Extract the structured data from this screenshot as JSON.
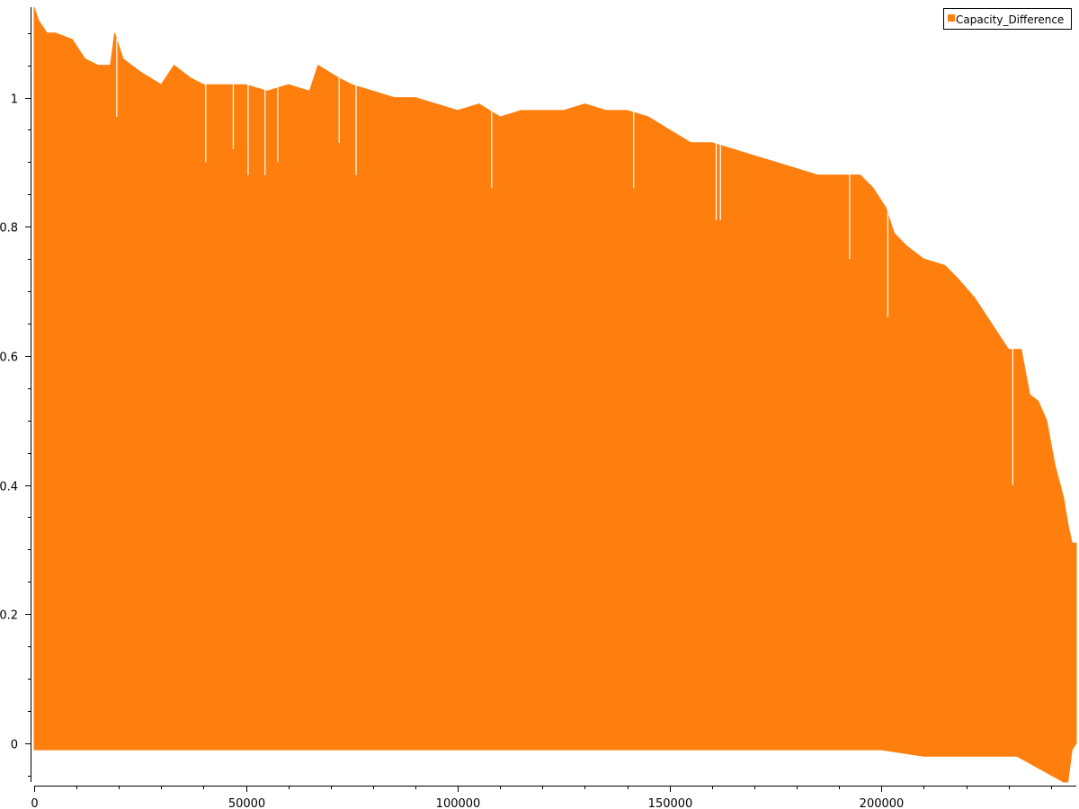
{
  "chart_data": {
    "type": "area",
    "title": "",
    "xlabel": "",
    "ylabel": "",
    "xlim": [
      0,
      246000
    ],
    "ylim": [
      -0.06,
      1.14
    ],
    "grid": false,
    "legend_position": "top-right",
    "x_ticks": [
      0,
      50000,
      100000,
      150000,
      200000
    ],
    "x_tick_labels": [
      "0",
      "50000",
      "100000",
      "150000",
      "200000"
    ],
    "y_ticks": [
      0,
      0.2,
      0.4,
      0.6,
      0.8,
      1
    ],
    "y_tick_labels": [
      "0",
      "0.2",
      "0.4",
      "0.6",
      "0.8",
      "1"
    ],
    "series": [
      {
        "name": "Capacity_Difference",
        "color": "#ff7f0e",
        "upper_envelope": {
          "x": [
            0,
            1000,
            3000,
            5000,
            9000,
            12000,
            15000,
            18000,
            19000,
            21000,
            25000,
            30000,
            33000,
            37000,
            40000,
            45000,
            50000,
            55000,
            60000,
            65000,
            67000,
            72000,
            75000,
            80000,
            85000,
            90000,
            95000,
            100000,
            105000,
            110000,
            115000,
            120000,
            125000,
            130000,
            135000,
            140000,
            145000,
            150000,
            155000,
            160000,
            165000,
            170000,
            175000,
            180000,
            185000,
            190000,
            195000,
            198000,
            201000,
            203000,
            206000,
            210000,
            215000,
            218000,
            222000,
            226000,
            230000,
            233000,
            235000,
            237000,
            239000,
            241000,
            243000,
            244000,
            245000,
            246000
          ],
          "y": [
            1.14,
            1.12,
            1.1,
            1.1,
            1.09,
            1.06,
            1.05,
            1.05,
            1.1,
            1.06,
            1.04,
            1.02,
            1.05,
            1.03,
            1.02,
            1.02,
            1.02,
            1.01,
            1.02,
            1.01,
            1.05,
            1.03,
            1.02,
            1.01,
            1.0,
            1.0,
            0.99,
            0.98,
            0.99,
            0.97,
            0.98,
            0.98,
            0.98,
            0.99,
            0.98,
            0.98,
            0.97,
            0.95,
            0.93,
            0.93,
            0.92,
            0.91,
            0.9,
            0.89,
            0.88,
            0.88,
            0.88,
            0.86,
            0.83,
            0.79,
            0.77,
            0.75,
            0.74,
            0.72,
            0.69,
            0.65,
            0.61,
            0.61,
            0.54,
            0.53,
            0.5,
            0.43,
            0.38,
            0.34,
            0.31,
            0.31
          ]
        },
        "lower_envelope": {
          "x": [
            0,
            50000,
            100000,
            150000,
            200000,
            210000,
            220000,
            232000,
            243000,
            244000,
            245000,
            246000
          ],
          "y": [
            -0.01,
            -0.01,
            -0.01,
            -0.01,
            -0.01,
            -0.02,
            -0.02,
            -0.02,
            -0.06,
            -0.06,
            -0.01,
            0
          ]
        },
        "dips": [
          {
            "x": 19500,
            "y": 0.97
          },
          {
            "x": 40500,
            "y": 0.9
          },
          {
            "x": 47000,
            "y": 0.92
          },
          {
            "x": 50500,
            "y": 0.88
          },
          {
            "x": 54500,
            "y": 0.88
          },
          {
            "x": 57500,
            "y": 0.9
          },
          {
            "x": 72000,
            "y": 0.93
          },
          {
            "x": 76000,
            "y": 0.88
          },
          {
            "x": 108000,
            "y": 0.86
          },
          {
            "x": 141500,
            "y": 0.86
          },
          {
            "x": 161000,
            "y": 0.81
          },
          {
            "x": 162000,
            "y": 0.81
          },
          {
            "x": 192500,
            "y": 0.75
          },
          {
            "x": 201500,
            "y": 0.66
          },
          {
            "x": 231000,
            "y": 0.4
          }
        ]
      }
    ]
  }
}
